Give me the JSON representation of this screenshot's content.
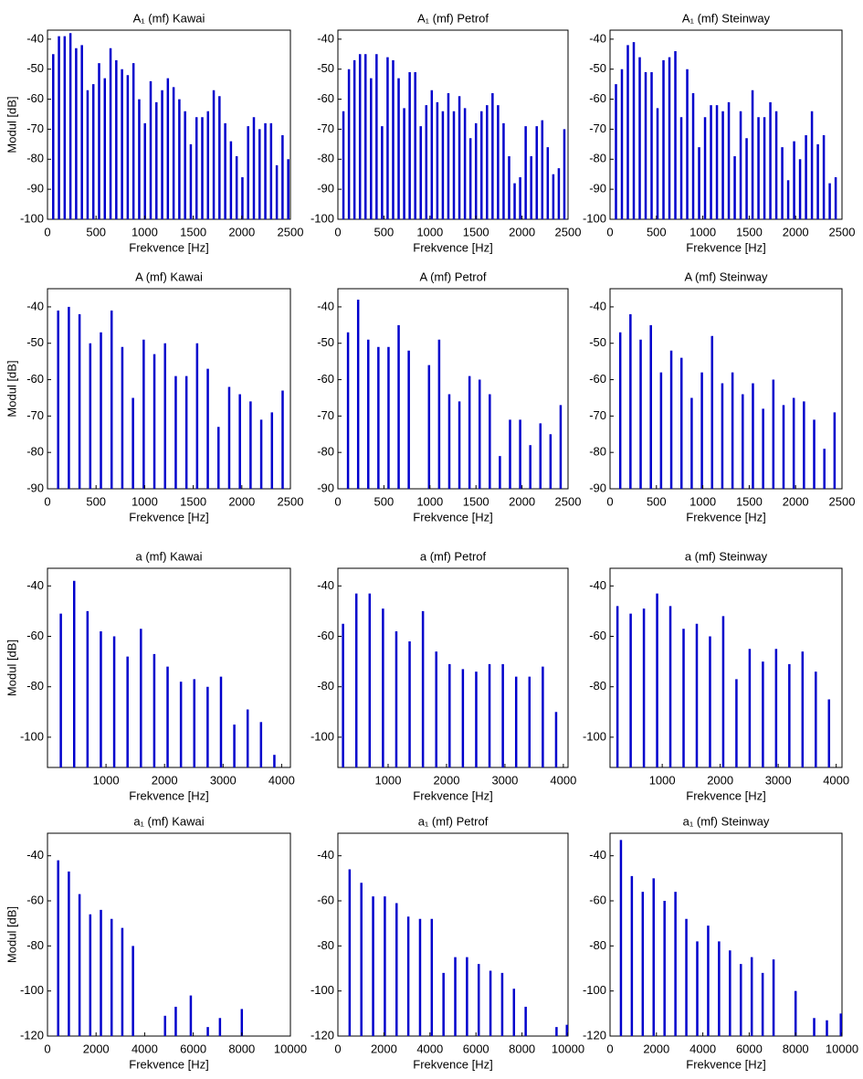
{
  "chart_data": [
    {
      "type": "stem",
      "title": "A₁ (mf) Kawai",
      "xlabel": "Frekvence [Hz]",
      "ylabel": "Modul [dB]",
      "color": "#0000cc",
      "x": [
        59,
        118,
        177,
        236,
        295,
        354,
        413,
        472,
        531,
        590,
        649,
        708,
        767,
        826,
        885,
        944,
        1003,
        1062,
        1121,
        1180,
        1239,
        1298,
        1357,
        1416,
        1475,
        1534,
        1593,
        1652,
        1711,
        1770,
        1829,
        1888,
        1947,
        2006,
        2065,
        2124,
        2183,
        2242,
        2301,
        2360,
        2419,
        2478
      ],
      "values": [
        -45,
        -39,
        -39,
        -38,
        -43,
        -42,
        -57,
        -55,
        -48,
        -53,
        -43,
        -47,
        -50,
        -52,
        -48,
        -60,
        -68,
        -54,
        -61,
        -57,
        -53,
        -56,
        -60,
        -64,
        -75,
        -66,
        -66,
        -64,
        -57,
        -59,
        -68,
        -74,
        -79,
        -86,
        -69,
        -66,
        -70,
        -68,
        -68,
        -82,
        -72,
        -80
      ],
      "xlim": [
        0,
        2500
      ],
      "xticks": [
        0,
        500,
        1000,
        1500,
        2000,
        2500
      ],
      "ylim": [
        -100,
        -37
      ],
      "yticks": [
        -100,
        -90,
        -80,
        -70,
        -60,
        -50,
        -40
      ]
    },
    {
      "type": "stem",
      "title": "A₁ (mf) Petrof",
      "xlabel": "Frekvence [Hz]",
      "color": "#0000cc",
      "x": [
        60,
        120,
        180,
        240,
        300,
        360,
        420,
        480,
        540,
        600,
        660,
        720,
        780,
        840,
        900,
        960,
        1020,
        1080,
        1140,
        1200,
        1260,
        1320,
        1380,
        1440,
        1500,
        1560,
        1620,
        1680,
        1740,
        1800,
        1860,
        1920,
        1980,
        2040,
        2100,
        2160,
        2220,
        2280,
        2340,
        2400,
        2460
      ],
      "values": [
        -64,
        -50,
        -47,
        -45,
        -45,
        -53,
        -45,
        -69,
        -46,
        -47,
        -53,
        -63,
        -51,
        -51,
        -69,
        -62,
        -57,
        -61,
        -64,
        -58,
        -64,
        -59,
        -63,
        -73,
        -68,
        -64,
        -62,
        -58,
        -62,
        -68,
        -79,
        -88,
        -86,
        -69,
        -79,
        -69,
        -67,
        -76,
        -85,
        -83,
        -70
      ],
      "xlim": [
        0,
        2500
      ],
      "xticks": [
        0,
        500,
        1000,
        1500,
        2000,
        2500
      ],
      "ylim": [
        -100,
        -37
      ],
      "yticks": [
        -100,
        -90,
        -80,
        -70,
        -60,
        -50,
        -40
      ]
    },
    {
      "type": "stem",
      "title": "A₁ (mf) Steinway",
      "xlabel": "Frekvence [Hz]",
      "color": "#0000cc",
      "x": [
        64,
        128,
        192,
        256,
        320,
        384,
        448,
        512,
        576,
        640,
        704,
        768,
        832,
        896,
        960,
        1024,
        1088,
        1152,
        1216,
        1280,
        1344,
        1408,
        1472,
        1536,
        1600,
        1664,
        1728,
        1792,
        1856,
        1920,
        1984,
        2048,
        2112,
        2176,
        2240,
        2304,
        2368,
        2432
      ],
      "values": [
        -55,
        -50,
        -42,
        -41,
        -46,
        -51,
        -51,
        -63,
        -47,
        -46,
        -44,
        -66,
        -50,
        -58,
        -76,
        -66,
        -62,
        -62,
        -64,
        -61,
        -79,
        -64,
        -73,
        -57,
        -66,
        -66,
        -61,
        -64,
        -76,
        -87,
        -74,
        -80,
        -72,
        -64,
        -75,
        -72,
        -88,
        -86
      ],
      "xlim": [
        0,
        2500
      ],
      "xticks": [
        0,
        500,
        1000,
        1500,
        2000,
        2500
      ],
      "ylim": [
        -100,
        -37
      ],
      "yticks": [
        -100,
        -90,
        -80,
        -70,
        -60,
        -50,
        -40
      ]
    },
    {
      "type": "stem",
      "title": "A (mf) Kawai",
      "xlabel": "Frekvence [Hz]",
      "ylabel": "Modul [dB]",
      "color": "#0000cc",
      "x": [
        110,
        220,
        330,
        440,
        550,
        660,
        770,
        880,
        990,
        1100,
        1210,
        1320,
        1430,
        1540,
        1650,
        1760,
        1870,
        1980,
        2090,
        2200,
        2310,
        2420
      ],
      "values": [
        -41,
        -40,
        -42,
        -50,
        -47,
        -41,
        -51,
        -65,
        -49,
        -53,
        -50,
        -59,
        -59,
        -50,
        -57,
        -73,
        -62,
        -64,
        -66,
        -71,
        -69,
        -63
      ],
      "xlim": [
        0,
        2500
      ],
      "xticks": [
        0,
        500,
        1000,
        1500,
        2000,
        2500
      ],
      "ylim": [
        -90,
        -35
      ],
      "yticks": [
        -90,
        -80,
        -70,
        -60,
        -50,
        -40
      ]
    },
    {
      "type": "stem",
      "title": "A (mf) Petrof",
      "xlabel": "Frekvence [Hz]",
      "color": "#0000cc",
      "x": [
        110,
        220,
        330,
        440,
        550,
        660,
        770,
        990,
        1100,
        1210,
        1320,
        1430,
        1540,
        1650,
        1760,
        1870,
        1980,
        2090,
        2200,
        2310,
        2420
      ],
      "values": [
        -47,
        -38,
        -49,
        -51,
        -51,
        -45,
        -52,
        -56,
        -49,
        -64,
        -66,
        -59,
        -60,
        -64,
        -81,
        -71,
        -71,
        -78,
        -72,
        -75,
        -67
      ],
      "xlim": [
        0,
        2500
      ],
      "xticks": [
        0,
        500,
        1000,
        1500,
        2000,
        2500
      ],
      "ylim": [
        -90,
        -35
      ],
      "yticks": [
        -90,
        -80,
        -70,
        -60,
        -50,
        -40
      ]
    },
    {
      "type": "stem",
      "title": "A (mf) Steinway",
      "xlabel": "Frekvence [Hz]",
      "color": "#0000cc",
      "x": [
        110,
        220,
        330,
        440,
        550,
        660,
        770,
        880,
        990,
        1100,
        1210,
        1320,
        1430,
        1540,
        1650,
        1760,
        1870,
        1980,
        2090,
        2200,
        2310,
        2420
      ],
      "values": [
        -47,
        -42,
        -49,
        -45,
        -58,
        -52,
        -54,
        -65,
        -58,
        -48,
        -61,
        -58,
        -64,
        -61,
        -68,
        -60,
        -67,
        -65,
        -66,
        -71,
        -79,
        -69
      ],
      "xlim": [
        0,
        2500
      ],
      "xticks": [
        0,
        500,
        1000,
        1500,
        2000,
        2500
      ],
      "ylim": [
        -90,
        -35
      ],
      "yticks": [
        -90,
        -80,
        -70,
        -60,
        -50,
        -40
      ]
    },
    {
      "type": "stem",
      "title": "a (mf) Kawai",
      "xlabel": "Frekvence [Hz]",
      "ylabel": "Modul [dB]",
      "color": "#0000cc",
      "x": [
        228,
        456,
        684,
        912,
        1140,
        1368,
        1596,
        1824,
        2052,
        2280,
        2508,
        2736,
        2964,
        3192,
        3420,
        3648,
        3876
      ],
      "values": [
        -51,
        -38,
        -50,
        -58,
        -60,
        -68,
        -57,
        -67,
        -72,
        -78,
        -77,
        -80,
        -76,
        -95,
        -89,
        -94,
        -107
      ],
      "xlim": [
        0,
        4150
      ],
      "xticks": [
        1000,
        2000,
        3000,
        4000
      ],
      "ylim": [
        -112,
        -33
      ],
      "yticks": [
        -100,
        -80,
        -60,
        -40
      ]
    },
    {
      "type": "stem",
      "title": "a (mf) Petrof",
      "xlabel": "Frekvence [Hz]",
      "color": "#0000cc",
      "x": [
        228,
        456,
        684,
        912,
        1140,
        1368,
        1596,
        1824,
        2052,
        2280,
        2508,
        2736,
        2964,
        3192,
        3420,
        3648,
        3876
      ],
      "values": [
        -55,
        -43,
        -43,
        -49,
        -58,
        -62,
        -50,
        -66,
        -71,
        -73,
        -74,
        -71,
        -71,
        -76,
        -76,
        -72,
        -90
      ],
      "xlim": [
        140,
        4080
      ],
      "xticks": [
        1000,
        2000,
        3000,
        4000
      ],
      "ylim": [
        -112,
        -33
      ],
      "yticks": [
        -100,
        -80,
        -60,
        -40
      ]
    },
    {
      "type": "stem",
      "title": "a (mf) Steinway",
      "xlabel": "Frekvence [Hz]",
      "color": "#0000cc",
      "x": [
        228,
        456,
        684,
        912,
        1140,
        1368,
        1596,
        1824,
        2052,
        2280,
        2508,
        2736,
        2964,
        3192,
        3420,
        3648,
        3876
      ],
      "values": [
        -48,
        -51,
        -49,
        -43,
        -48,
        -57,
        -55,
        -60,
        -52,
        -77,
        -65,
        -70,
        -65,
        -71,
        -66,
        -74,
        -85
      ],
      "xlim": [
        100,
        4100
      ],
      "xticks": [
        1000,
        2000,
        3000,
        4000
      ],
      "ylim": [
        -112,
        -33
      ],
      "yticks": [
        -100,
        -80,
        -60,
        -40
      ]
    },
    {
      "type": "stem",
      "title": "a₁ (mf) Kawai",
      "xlabel": "Frekvence [Hz]",
      "ylabel": "Modul [dB]",
      "color": "#0000cc",
      "x": [
        440,
        880,
        1320,
        1760,
        2200,
        2640,
        3080,
        3520,
        4840,
        5280,
        5900,
        6600,
        7100,
        8000
      ],
      "values": [
        -42,
        -47,
        -57,
        -66,
        -64,
        -68,
        -72,
        -80,
        -111,
        -107,
        -102,
        -116,
        -112,
        -108
      ],
      "xlim": [
        0,
        10000
      ],
      "xticks": [
        0,
        2000,
        4000,
        6000,
        8000,
        10000
      ],
      "ylim": [
        -120,
        -30
      ],
      "yticks": [
        -120,
        -100,
        -80,
        -60,
        -40
      ]
    },
    {
      "type": "stem",
      "title": "a₁ (mf) Petrof",
      "xlabel": "Frekvence [Hz]",
      "color": "#0000cc",
      "x": [
        510,
        1020,
        1530,
        2040,
        2550,
        3060,
        3570,
        4080,
        4590,
        5100,
        5610,
        6120,
        6630,
        7140,
        7650,
        8160,
        9500,
        9950
      ],
      "values": [
        -46,
        -52,
        -58,
        -58,
        -61,
        -67,
        -68,
        -68,
        -92,
        -85,
        -85,
        -88,
        -91,
        -92,
        -99,
        -107,
        -116,
        -115
      ],
      "xlim": [
        0,
        10000
      ],
      "xticks": [
        0,
        2000,
        4000,
        6000,
        8000,
        10000
      ],
      "ylim": [
        -120,
        -30
      ],
      "yticks": [
        -120,
        -100,
        -80,
        -60,
        -40
      ]
    },
    {
      "type": "stem",
      "title": "a₁ (mf) Steinway",
      "xlabel": "Frekvence [Hz]",
      "color": "#0000cc",
      "x": [
        470,
        940,
        1410,
        1880,
        2350,
        2820,
        3290,
        3760,
        4230,
        4700,
        5170,
        5640,
        6110,
        6580,
        7050,
        8000,
        8800,
        9350,
        9950
      ],
      "values": [
        -33,
        -49,
        -56,
        -50,
        -60,
        -56,
        -68,
        -78,
        -71,
        -78,
        -82,
        -88,
        -85,
        -92,
        -86,
        -100,
        -112,
        -113,
        -110
      ],
      "xlim": [
        0,
        10000
      ],
      "xticks": [
        0,
        2000,
        4000,
        6000,
        8000,
        10000
      ],
      "ylim": [
        -120,
        -30
      ],
      "yticks": [
        -120,
        -100,
        -80,
        -60,
        -40
      ]
    }
  ]
}
